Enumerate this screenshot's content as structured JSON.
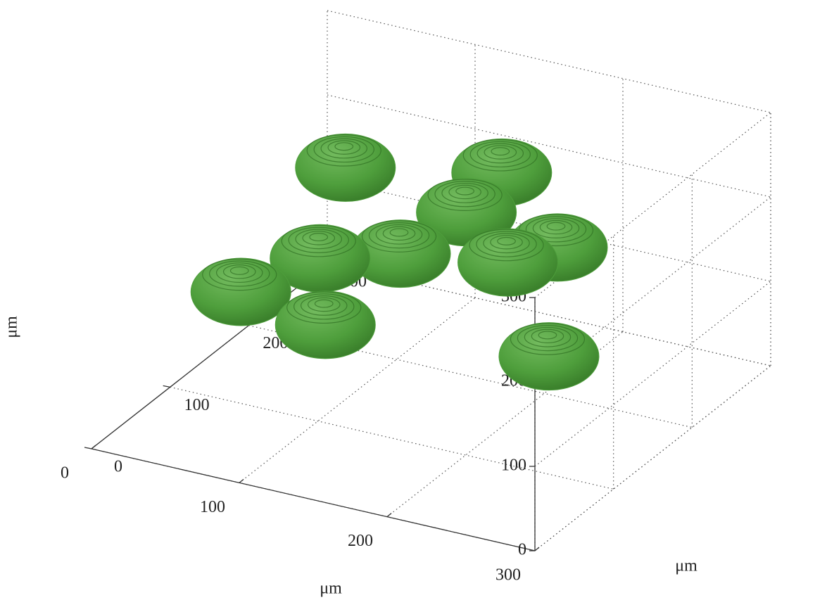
{
  "chart_data": {
    "type": "scatter3d",
    "x": [
      58,
      143,
      151,
      77,
      116,
      194,
      178,
      58,
      96,
      234
    ],
    "y": [
      214,
      253,
      193,
      146,
      175,
      228,
      195,
      81,
      117,
      142
    ],
    "z": [
      200,
      200,
      200,
      150,
      150,
      150,
      150,
      150,
      100,
      100
    ],
    "color": "#4e9e3c",
    "xlim": [
      0,
      300
    ],
    "ylim": [
      0,
      300
    ],
    "zlim": [
      0,
      300
    ],
    "xticks": [
      0,
      100,
      200,
      300
    ],
    "yticks": [
      0,
      100,
      200,
      300
    ],
    "zticks": [
      0,
      100,
      200,
      300
    ],
    "xlabel": "μm",
    "ylabel": "μm",
    "zlabel": "μm",
    "grid": true
  }
}
